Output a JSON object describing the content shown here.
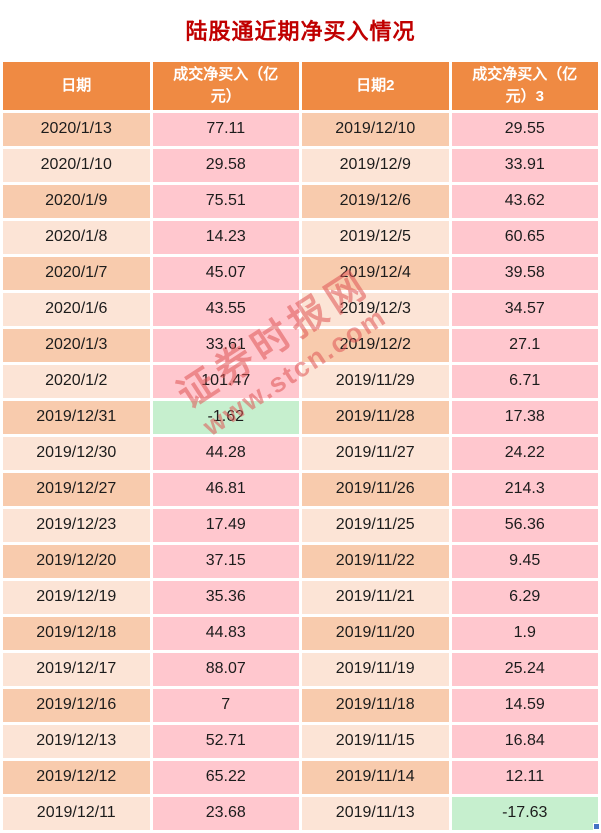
{
  "title": "陆股通近期净买入情况",
  "watermark": {
    "brand": "证券时报网",
    "url": "www.stcn.com"
  },
  "colors": {
    "title_color": "#c00000",
    "header_bg": "#ef8a43",
    "date_dark": "#f8cbad",
    "date_light": "#fce4d6",
    "value_pink": "#ffc7ce",
    "value_green": "#c6efce",
    "watermark_color": "#e05555",
    "handle_blue": "#4472c4"
  },
  "chart_data": {
    "type": "table",
    "title": "陆股通近期净买入情况",
    "units": "亿元",
    "columns": [
      "日期",
      "成交净买入（亿元）",
      "日期2",
      "成交净买入（亿元）3"
    ],
    "rows": [
      [
        "2020/1/13",
        "77.11",
        "2019/12/10",
        "29.55"
      ],
      [
        "2020/1/10",
        "29.58",
        "2019/12/9",
        "33.91"
      ],
      [
        "2020/1/9",
        "75.51",
        "2019/12/6",
        "43.62"
      ],
      [
        "2020/1/8",
        "14.23",
        "2019/12/5",
        "60.65"
      ],
      [
        "2020/1/7",
        "45.07",
        "2019/12/4",
        "39.58"
      ],
      [
        "2020/1/6",
        "43.55",
        "2019/12/3",
        "34.57"
      ],
      [
        "2020/1/3",
        "33.61",
        "2019/12/2",
        "27.1"
      ],
      [
        "2020/1/2",
        "101.47",
        "2019/11/29",
        "6.71"
      ],
      [
        "2019/12/31",
        "-1.62",
        "2019/11/28",
        "17.38"
      ],
      [
        "2019/12/30",
        "44.28",
        "2019/11/27",
        "24.22"
      ],
      [
        "2019/12/27",
        "46.81",
        "2019/11/26",
        "214.3"
      ],
      [
        "2019/12/23",
        "17.49",
        "2019/11/25",
        "56.36"
      ],
      [
        "2019/12/20",
        "37.15",
        "2019/11/22",
        "9.45"
      ],
      [
        "2019/12/19",
        "35.36",
        "2019/11/21",
        "6.29"
      ],
      [
        "2019/12/18",
        "44.83",
        "2019/11/20",
        "1.9"
      ],
      [
        "2019/12/17",
        "88.07",
        "2019/11/19",
        "25.24"
      ],
      [
        "2019/12/16",
        "7",
        "2019/11/18",
        "14.59"
      ],
      [
        "2019/12/13",
        "52.71",
        "2019/11/15",
        "16.84"
      ],
      [
        "2019/12/12",
        "65.22",
        "2019/11/14",
        "12.11"
      ],
      [
        "2019/12/11",
        "23.68",
        "2019/11/13",
        "-17.63"
      ]
    ],
    "negative_cell_fill": "#c6efce",
    "positive_cell_fill": "#ffc7ce"
  }
}
